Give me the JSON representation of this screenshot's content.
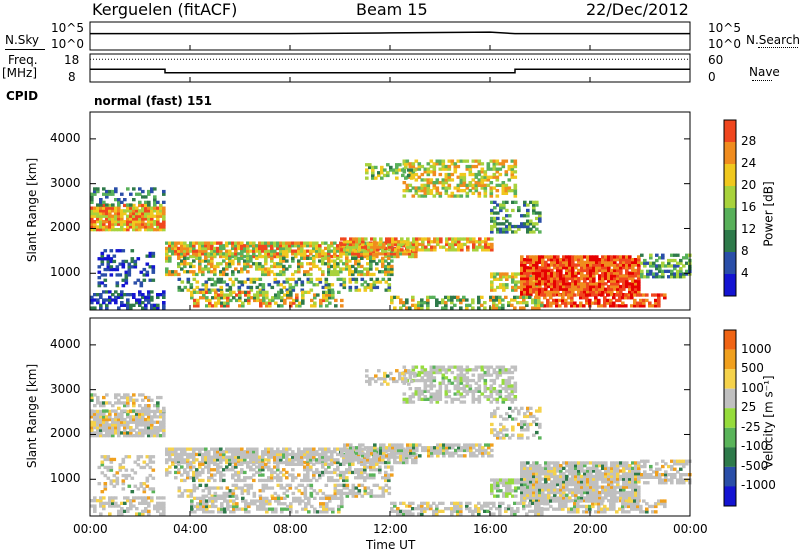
{
  "header": {
    "station": "Kerguelen (fitACF)",
    "beam": "Beam 15",
    "date": "22/Dec/2012"
  },
  "top_panels": {
    "nsky_label": "N.Sky",
    "nsearch_label": "N.Search",
    "nsky_ticks": [
      "10^5",
      "10^0"
    ],
    "nsearch_ticks": [
      "10^5",
      "10^0"
    ],
    "freq_label_1": "Freq.",
    "freq_label_2": "[MHz]",
    "freq_ticks": [
      "18",
      "8"
    ],
    "nave_label": "Nave",
    "nave_ticks": [
      "60",
      "0"
    ],
    "cpid_label": "CPID",
    "cpid_value": "normal (fast) 151"
  },
  "colors": {
    "power_scale": [
      "#1414d2",
      "#2a4ea8",
      "#2e7a4a",
      "#58b05a",
      "#a8d23c",
      "#f0c81e",
      "#f08c1e",
      "#f0461e",
      "#e60000"
    ],
    "velocity_scale": [
      "#1414d2",
      "#2a4ea8",
      "#2e7a4a",
      "#5ab45a",
      "#96dc3c",
      "#c0c0c0",
      "#f5d24b",
      "#f0a01e",
      "#f06414",
      "#e61e0a",
      "#e60000"
    ]
  },
  "chart_data": [
    {
      "type": "line",
      "title": "N.Sky / N.Search",
      "x": [
        "00:00",
        "04:00",
        "08:00",
        "12:00",
        "16:00",
        "17:00",
        "20:00",
        "00:00"
      ],
      "series": [
        {
          "name": "N.Sky",
          "values": [
            1000,
            1000,
            1000,
            1400,
            2000,
            1000,
            1000,
            1000
          ]
        }
      ],
      "ylim": [
        1,
        100000
      ],
      "log_scale": true
    },
    {
      "type": "line",
      "title": "Freq. [MHz] / Nave",
      "x": [
        "00:00",
        "03:00",
        "03:00",
        "17:00",
        "17:00",
        "24:00"
      ],
      "series": [
        {
          "name": "Freq.",
          "values": [
            12.5,
            12.5,
            11.0,
            11.0,
            12.5,
            12.5
          ]
        },
        {
          "name": "Nave",
          "values": [
            52,
            52,
            52,
            52,
            52,
            52
          ]
        }
      ],
      "ylim": [
        8,
        18
      ]
    },
    {
      "type": "heatmap",
      "quantity": "Power",
      "xlabel": "Time UT",
      "ylabel": "Slant Range [km]",
      "colorbar_label": "Power [dB]",
      "colorbar_ticks": [
        "4",
        "8",
        "12",
        "16",
        "20",
        "24",
        "28"
      ],
      "xlim_hours": [
        0,
        24
      ],
      "ylim": [
        180,
        4600
      ],
      "yticks": [
        "1000",
        "2000",
        "3000",
        "4000"
      ],
      "xticks": [
        "00:00",
        "04:00",
        "08:00",
        "12:00",
        "16:00",
        "20:00",
        "00:00"
      ]
    },
    {
      "type": "heatmap",
      "quantity": "Velocity",
      "xlabel": "Time UT",
      "ylabel": "Slant Range [km]",
      "colorbar_label": "Velocity [m s⁻¹]",
      "colorbar_ticks": [
        "1000",
        "500",
        "100",
        "25",
        "-25",
        "-100",
        "-500",
        "-1000"
      ],
      "xlim_hours": [
        0,
        24
      ],
      "ylim": [
        180,
        4600
      ],
      "yticks": [
        "1000",
        "2000",
        "3000",
        "4000"
      ],
      "xticks": [
        "00:00",
        "04:00",
        "08:00",
        "12:00",
        "16:00",
        "20:00",
        "00:00"
      ]
    }
  ]
}
